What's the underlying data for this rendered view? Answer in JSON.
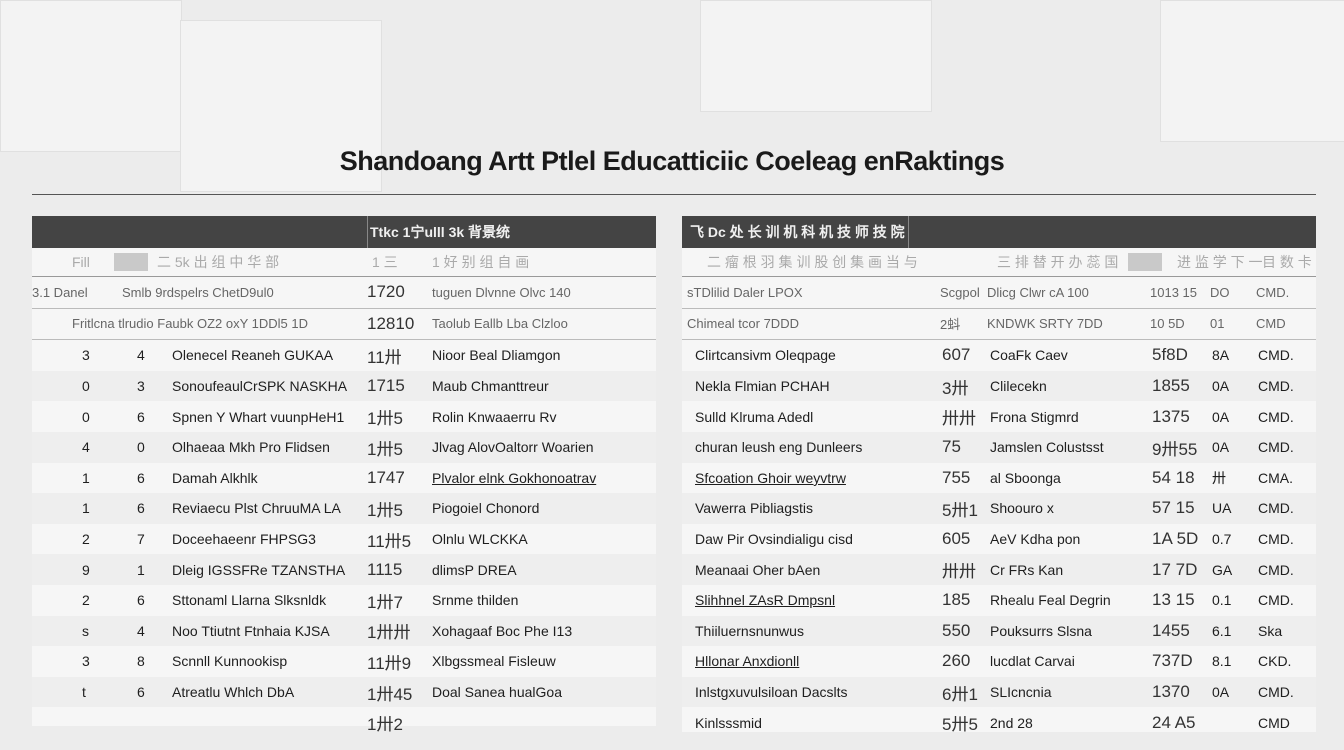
{
  "title": "Shandoang Artt Ptlel Educatticiic Coeleag enRaktings",
  "left": {
    "header": "Ttkc 1宁ulll 3k 背景统",
    "subheader": [
      "Fill",
      "二 5k 出 组 中 华 部",
      "1 三",
      "1 好 别 组 自 画"
    ],
    "top_rows": [
      [
        "3.1 Danel",
        "Smlb 9rdspelrs ChetD9ul0",
        "1720",
        "tuguen Dlvnne Olvc 140"
      ],
      [
        "",
        "Fritlcna tlrudio Faubk OZ2 oxY 1DDl5 1D",
        "12810",
        "Taolub Eallb Lba Clzloo"
      ]
    ],
    "rows": [
      [
        "3",
        "4",
        "Olenecel Reaneh GUKAA",
        "11卅",
        "Nioor Beal Dliamgon"
      ],
      [
        "0",
        "3",
        "SonoufeaulCrSPK NASKHA",
        "1715",
        "Maub Chmanttreur"
      ],
      [
        "0",
        "6",
        "Spnen Y Whart vuunpHeH1",
        "1卅5",
        "Rolin Knwaaerru Rv"
      ],
      [
        "4",
        "0",
        "Olhaeaa Mkh Pro Flidsen",
        "1卅5",
        "Jlvag AlovOaltorr Woarien"
      ],
      [
        "1",
        "6",
        "Damah Alkhlk",
        "1747",
        "Plvalor elnk Gokhonoatrav"
      ],
      [
        "1",
        "6",
        "Reviaecu Plst ChruuMA LA",
        "1卅5",
        "Piogoiel Chonord"
      ],
      [
        "2",
        "7",
        "Doceehaeenr FHPSG3",
        "11卅5",
        "Olnlu WLCKKA"
      ],
      [
        "9",
        "1",
        "Dleig IGSSFRe TZANSTHA",
        "1115",
        "dlimsP DREA"
      ],
      [
        "2",
        "6",
        "Sttonaml Llarna Slksnldk",
        "1卅7",
        "Srnme thilden"
      ],
      [
        "s",
        "4",
        "Noo Ttiutnt Ftnhaia KJSA",
        "1卅卅",
        "Xohagaaf Boc Phe I13"
      ],
      [
        "3",
        "8",
        "Scnnll Kunnookisp",
        "11卅9",
        "Xlbgssmeal Fisleuw"
      ],
      [
        "t",
        "6",
        "Atreatlu Whlch DbA",
        "1卅45",
        "Doal Sanea hualGoa"
      ]
    ],
    "last_score": "1卅2"
  },
  "right": {
    "header": "飞 Dc 处 长 训 机 科 机 技 师 技 院",
    "subheader": [
      "二 瘤 根 羽 集 训 股 创 集 画 当 与",
      "三 排 替 开 办 蕊 国",
      "进 监 学 下 一",
      "目 数 卡"
    ],
    "top_rows": [
      [
        "sTDlilid Daler LPOX",
        "Scgpol",
        "Dlicg Clwr cA 100",
        "1013 15",
        "DO",
        "CMD."
      ],
      [
        "Chimeal tcor 7DDD",
        "2蚪",
        "KNDWK SRTY 7DD",
        "10 5D",
        "01",
        "CMD"
      ]
    ],
    "rows": [
      [
        "Clirtcansivm Oleqpage",
        "607",
        "CoaFk Caev",
        "5f8D",
        "8A",
        "CMD."
      ],
      [
        "Nekla Flmian PCHAH",
        "3卅",
        "Clilecekn",
        "1855",
        "0A",
        "CMD."
      ],
      [
        "Sulld Klruma Adedl",
        "卅卅",
        "Frona Stigmrd",
        "1375",
        "0A",
        "CMD."
      ],
      [
        "churan leush eng Dunleers",
        "75",
        "Jamslen Colustsst",
        "9卅55",
        "0A",
        "CMD."
      ],
      [
        "Sfcoation Ghoir weyvtrw",
        "755",
        "al Sboonga",
        "54 18",
        "卅",
        "CMA."
      ],
      [
        "Vawerra Pibliagstis",
        "5卅1",
        "Shoouro x",
        "57 15",
        "UA",
        "CMD."
      ],
      [
        "Daw Pir Ovsindialigu cisd",
        "605",
        "AeV Kdha pon",
        "1A 5D",
        "0.7",
        "CMD."
      ],
      [
        "Meanaai Oher bAen",
        "卅卅",
        "Cr FRs Kan",
        "17 7D",
        "GA",
        "CMD."
      ],
      [
        "Slihhnel ZAsR Dmpsnl",
        "185",
        "Rhealu Feal Degrin",
        "13 15",
        "0.1",
        "CMD."
      ],
      [
        "Thiiluernsnunwus",
        "550",
        "Pouksurrs Slsna",
        "1455",
        "6.1",
        "Ska"
      ],
      [
        "Hllonar Anxdionll",
        "260",
        "lucdlat Carvai",
        "737D",
        "8.1",
        "CKD."
      ],
      [
        "Inlstgxuvulsiloan Dacslts",
        "6卅1",
        "SLIcncnia",
        "1370",
        "0A",
        "CMD."
      ],
      [
        "Kinlsssmid",
        "5卅5",
        "2nd 28",
        "24 A5",
        "",
        "CMD"
      ]
    ]
  },
  "colors": {
    "header_bg": "#444444",
    "background": "#ececec"
  }
}
